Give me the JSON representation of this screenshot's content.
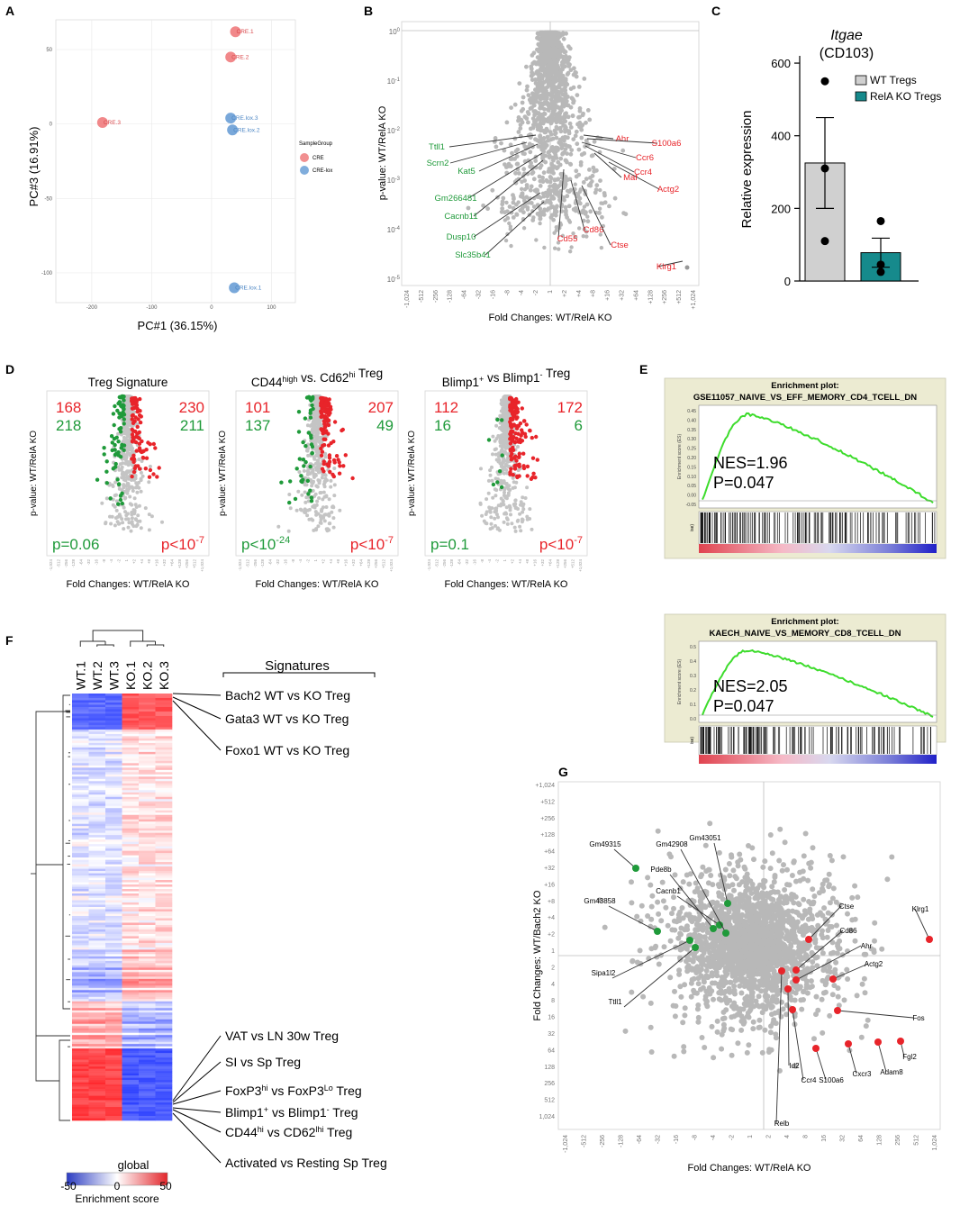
{
  "panel_letters": {
    "A": "A",
    "B": "B",
    "C": "C",
    "D": "D",
    "E": "E",
    "F": "F",
    "G": "G"
  },
  "colors": {
    "red": "#e8242a",
    "green": "#1f9a3a",
    "grey": "#b8b8b8",
    "teal": "#168a8c",
    "pink": "#ef7b7d",
    "blue_pt": "#6a9fd6",
    "gsea_line": "#3ddc2c"
  },
  "panel_A": {
    "xlabel": "PC#1 (36.15%)",
    "ylabel": "PC#3 (16.91%)",
    "x_ticks": [
      "-200",
      "-100",
      "0",
      "100"
    ],
    "y_ticks": [
      "50",
      "0",
      "-50",
      "-100"
    ],
    "legend_title": "SampleGroup",
    "legend_items": [
      "CRE",
      "CRE-lox"
    ],
    "chart_data": {
      "type": "scatter",
      "xlim": [
        -260,
        140
      ],
      "ylim": [
        -120,
        70
      ],
      "points": [
        {
          "label": "CRE.1",
          "x": 40,
          "y": 62,
          "group": "CRE"
        },
        {
          "label": "CRE.2",
          "x": 32,
          "y": 45,
          "group": "CRE"
        },
        {
          "label": "CRE.3",
          "x": -182,
          "y": 1,
          "group": "CRE"
        },
        {
          "label": "CRE.lox.3",
          "x": 32,
          "y": 4,
          "group": "CRE-lox"
        },
        {
          "label": "CRE.lox.2",
          "x": 35,
          "y": -4,
          "group": "CRE-lox"
        },
        {
          "label": "CRE.lox.1",
          "x": 38,
          "y": -110,
          "group": "CRE-lox"
        }
      ]
    }
  },
  "panel_B": {
    "xlabel": "Fold Changes: WT/RelA KO",
    "ylabel": "p-value: WT/RelA KO",
    "x_ticks": [
      "-1,024",
      "-512",
      "-256",
      "-128",
      "-64",
      "-32",
      "-16",
      "-8",
      "-4",
      "-2",
      "1",
      "+2",
      "+4",
      "+8",
      "+16",
      "+32",
      "+64",
      "+128",
      "+256",
      "+512",
      "+1,024"
    ],
    "y_ticks": [
      "10^0",
      "10^-1",
      "10^-2",
      "10^-3",
      "10^-4",
      "10^-5"
    ],
    "green_labels": [
      "Ttll1",
      "Scrn2",
      "Kat5",
      "Gm266481",
      "Cacnb11",
      "Dusp10",
      "Slc35b41"
    ],
    "red_labels": [
      "Ahr",
      "S100a6",
      "Ccr6",
      "Ccr4",
      "Actg2",
      "Maf",
      "Cd86",
      "Cd55",
      "Ctse",
      "Klrg1"
    ]
  },
  "panel_C": {
    "title_gene": "Itgae",
    "title_protein": "(CD103)",
    "ylabel": "Relative expression",
    "y_ticks": [
      "0",
      "200",
      "400",
      "600"
    ],
    "legend": [
      "WT Tregs",
      "RelA KO Tregs"
    ],
    "chart_data": {
      "type": "bar",
      "categories": [
        "WT Tregs",
        "RelA KO Tregs"
      ],
      "values": [
        325,
        78
      ],
      "errors": [
        125,
        40
      ],
      "points": [
        [
          550,
          310,
          110
        ],
        [
          165,
          45,
          25
        ]
      ],
      "ylim": [
        0,
        620
      ]
    }
  },
  "panel_D": {
    "xlabel": "Fold Changes: WT/RelA KO",
    "ylabel": "p-value: WT/RelA KO",
    "subpanels": [
      {
        "title": "Treg Signature",
        "up_left": "168",
        "up_right": "230",
        "down_left": "218",
        "down_right": "211",
        "p_left": "p=0.06",
        "p_right": "p<10-7"
      },
      {
        "title": "CD44high vs. Cd62hi Treg",
        "up_left": "101",
        "up_right": "207",
        "down_left": "137",
        "down_right": "49",
        "p_left": "p<10-24",
        "p_right": "p<10-7"
      },
      {
        "title": "Blimp1+ vs Blimp1- Treg",
        "up_left": "112",
        "up_right": "172",
        "down_left": "16",
        "down_right": "6",
        "p_left": "p=0.1",
        "p_right": "p<10-7"
      }
    ]
  },
  "panel_E": {
    "plots": [
      {
        "title1": "Enrichment plot:",
        "title2": "GSE11057_NAIVE_VS_EFF_MEMORY_CD4_TCELL_DN",
        "nes": "NES=1.96",
        "p": "P=0.047",
        "ylabel": "Enrichment score (ES)",
        "y_ticks": [
          "0.45",
          "0.40",
          "0.35",
          "0.30",
          "0.25",
          "0.20",
          "0.15",
          "0.10",
          "0.05",
          "0.00",
          "-0.05"
        ]
      },
      {
        "title1": "Enrichment plot:",
        "title2": "KAECH_NAIVE_VS_MEMORY_CD8_TCELL_DN",
        "nes": "NES=2.05",
        "p": "P=0.047",
        "ylabel": "Enrichment score (ES)",
        "y_ticks": [
          "0.5",
          "0.4",
          "0.3",
          "0.2",
          "0.1",
          "0.0"
        ]
      }
    ],
    "side_label": "ise)"
  },
  "panel_F": {
    "columns": [
      "WT.1",
      "WT.2",
      "WT.3",
      "KO.1",
      "KO.2",
      "KO.3"
    ],
    "signatures_header": "Signatures",
    "top_labels": [
      "Bach2 WT vs KO Treg",
      "Gata3 WT vs KO Treg",
      "Foxo1 WT vs KO Treg"
    ],
    "bottom_labels": [
      "VAT vs LN 30w Treg",
      "SI vs Sp Treg",
      "FoxP3hi vs FoxP3Lo Treg",
      "Blimp1+ vs Blimp1- Treg",
      "CD44hi vs CD62lhi Treg",
      "Activated vs Resting Sp Treg"
    ],
    "colorbar_title": "global",
    "colorbar_ticks": [
      "-50",
      "0",
      "50"
    ],
    "colorbar_label": "Enrichment score"
  },
  "panel_G": {
    "xlabel": "Fold Changes: WT/RelA KO",
    "ylabel": "Fold Changes: WT/Bach2 KO",
    "x_ticks": [
      "-1,024",
      "-512",
      "-256",
      "-128",
      "-64",
      "-32",
      "-16",
      "-8",
      "-4",
      "-2",
      "1",
      "2",
      "4",
      "8",
      "16",
      "32",
      "64",
      "128",
      "256",
      "512",
      "1,024"
    ],
    "y_ticks": [
      "+1,024",
      "+512",
      "+256",
      "+128",
      "+64",
      "+32",
      "+16",
      "+8",
      "+4",
      "+2",
      "1",
      "2",
      "4",
      "8",
      "16",
      "32",
      "64",
      "128",
      "256",
      "512",
      "1,024"
    ],
    "green_labels": [
      "Gm49315",
      "Gm43858",
      "Sipa1l2",
      "Ttll1",
      "Cacnb1",
      "Pde8b",
      "Gm42908",
      "Gm43051"
    ],
    "red_labels": [
      "Ctse",
      "Cd86",
      "Ahr",
      "Actg2",
      "Klrg1",
      "Fos",
      "Fgl2",
      "Adam8",
      "Cxcr3",
      "S100a6",
      "Ccr4",
      "Id2",
      "Relb"
    ]
  }
}
